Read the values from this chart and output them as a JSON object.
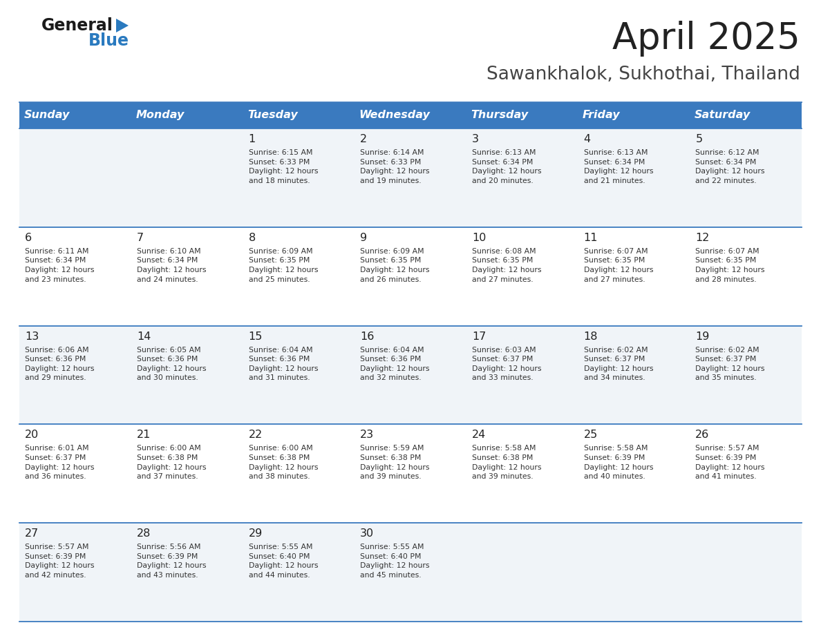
{
  "title": "April 2025",
  "subtitle": "Sawankhalok, Sukhothai, Thailand",
  "header_bg": "#3a7abf",
  "header_text_color": "#ffffff",
  "cell_bg_odd": "#f0f4f8",
  "cell_bg_even": "#ffffff",
  "border_color": "#3a7abf",
  "text_color": "#333333",
  "day_num_color": "#222222",
  "days_of_week": [
    "Sunday",
    "Monday",
    "Tuesday",
    "Wednesday",
    "Thursday",
    "Friday",
    "Saturday"
  ],
  "weeks": [
    [
      {
        "day": "",
        "info": ""
      },
      {
        "day": "",
        "info": ""
      },
      {
        "day": "1",
        "info": "Sunrise: 6:15 AM\nSunset: 6:33 PM\nDaylight: 12 hours\nand 18 minutes."
      },
      {
        "day": "2",
        "info": "Sunrise: 6:14 AM\nSunset: 6:33 PM\nDaylight: 12 hours\nand 19 minutes."
      },
      {
        "day": "3",
        "info": "Sunrise: 6:13 AM\nSunset: 6:34 PM\nDaylight: 12 hours\nand 20 minutes."
      },
      {
        "day": "4",
        "info": "Sunrise: 6:13 AM\nSunset: 6:34 PM\nDaylight: 12 hours\nand 21 minutes."
      },
      {
        "day": "5",
        "info": "Sunrise: 6:12 AM\nSunset: 6:34 PM\nDaylight: 12 hours\nand 22 minutes."
      }
    ],
    [
      {
        "day": "6",
        "info": "Sunrise: 6:11 AM\nSunset: 6:34 PM\nDaylight: 12 hours\nand 23 minutes."
      },
      {
        "day": "7",
        "info": "Sunrise: 6:10 AM\nSunset: 6:34 PM\nDaylight: 12 hours\nand 24 minutes."
      },
      {
        "day": "8",
        "info": "Sunrise: 6:09 AM\nSunset: 6:35 PM\nDaylight: 12 hours\nand 25 minutes."
      },
      {
        "day": "9",
        "info": "Sunrise: 6:09 AM\nSunset: 6:35 PM\nDaylight: 12 hours\nand 26 minutes."
      },
      {
        "day": "10",
        "info": "Sunrise: 6:08 AM\nSunset: 6:35 PM\nDaylight: 12 hours\nand 27 minutes."
      },
      {
        "day": "11",
        "info": "Sunrise: 6:07 AM\nSunset: 6:35 PM\nDaylight: 12 hours\nand 27 minutes."
      },
      {
        "day": "12",
        "info": "Sunrise: 6:07 AM\nSunset: 6:35 PM\nDaylight: 12 hours\nand 28 minutes."
      }
    ],
    [
      {
        "day": "13",
        "info": "Sunrise: 6:06 AM\nSunset: 6:36 PM\nDaylight: 12 hours\nand 29 minutes."
      },
      {
        "day": "14",
        "info": "Sunrise: 6:05 AM\nSunset: 6:36 PM\nDaylight: 12 hours\nand 30 minutes."
      },
      {
        "day": "15",
        "info": "Sunrise: 6:04 AM\nSunset: 6:36 PM\nDaylight: 12 hours\nand 31 minutes."
      },
      {
        "day": "16",
        "info": "Sunrise: 6:04 AM\nSunset: 6:36 PM\nDaylight: 12 hours\nand 32 minutes."
      },
      {
        "day": "17",
        "info": "Sunrise: 6:03 AM\nSunset: 6:37 PM\nDaylight: 12 hours\nand 33 minutes."
      },
      {
        "day": "18",
        "info": "Sunrise: 6:02 AM\nSunset: 6:37 PM\nDaylight: 12 hours\nand 34 minutes."
      },
      {
        "day": "19",
        "info": "Sunrise: 6:02 AM\nSunset: 6:37 PM\nDaylight: 12 hours\nand 35 minutes."
      }
    ],
    [
      {
        "day": "20",
        "info": "Sunrise: 6:01 AM\nSunset: 6:37 PM\nDaylight: 12 hours\nand 36 minutes."
      },
      {
        "day": "21",
        "info": "Sunrise: 6:00 AM\nSunset: 6:38 PM\nDaylight: 12 hours\nand 37 minutes."
      },
      {
        "day": "22",
        "info": "Sunrise: 6:00 AM\nSunset: 6:38 PM\nDaylight: 12 hours\nand 38 minutes."
      },
      {
        "day": "23",
        "info": "Sunrise: 5:59 AM\nSunset: 6:38 PM\nDaylight: 12 hours\nand 39 minutes."
      },
      {
        "day": "24",
        "info": "Sunrise: 5:58 AM\nSunset: 6:38 PM\nDaylight: 12 hours\nand 39 minutes."
      },
      {
        "day": "25",
        "info": "Sunrise: 5:58 AM\nSunset: 6:39 PM\nDaylight: 12 hours\nand 40 minutes."
      },
      {
        "day": "26",
        "info": "Sunrise: 5:57 AM\nSunset: 6:39 PM\nDaylight: 12 hours\nand 41 minutes."
      }
    ],
    [
      {
        "day": "27",
        "info": "Sunrise: 5:57 AM\nSunset: 6:39 PM\nDaylight: 12 hours\nand 42 minutes."
      },
      {
        "day": "28",
        "info": "Sunrise: 5:56 AM\nSunset: 6:39 PM\nDaylight: 12 hours\nand 43 minutes."
      },
      {
        "day": "29",
        "info": "Sunrise: 5:55 AM\nSunset: 6:40 PM\nDaylight: 12 hours\nand 44 minutes."
      },
      {
        "day": "30",
        "info": "Sunrise: 5:55 AM\nSunset: 6:40 PM\nDaylight: 12 hours\nand 45 minutes."
      },
      {
        "day": "",
        "info": ""
      },
      {
        "day": "",
        "info": ""
      },
      {
        "day": "",
        "info": ""
      }
    ]
  ],
  "logo_general_color": "#1a1a1a",
  "logo_blue_color": "#2a7abf",
  "logo_triangle_color": "#2a7abf",
  "title_color": "#222222",
  "subtitle_color": "#444444"
}
